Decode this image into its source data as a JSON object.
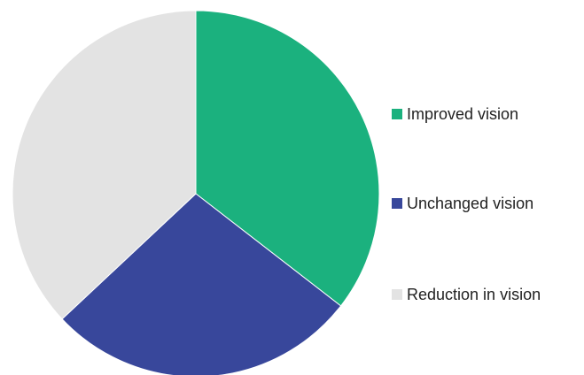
{
  "chart_data": {
    "type": "pie",
    "title": "",
    "legend_position": "right",
    "slices": [
      {
        "label": "Improved vision",
        "value": 35.5,
        "color": "#1bb17e"
      },
      {
        "label": "Unchanged vision",
        "value": 27.5,
        "color": "#38479b"
      },
      {
        "label": "Reduction in vision",
        "value": 37.0,
        "color": "#e3e3e3"
      }
    ]
  }
}
